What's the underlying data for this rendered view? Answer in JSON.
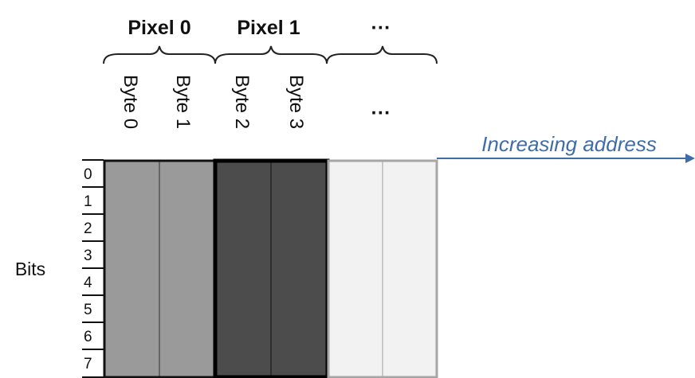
{
  "pixels": [
    {
      "label": "Pixel 0",
      "bytes": [
        "Byte 0",
        "Byte 1"
      ],
      "color": "#9a9a9a"
    },
    {
      "label": "Pixel 1",
      "bytes": [
        "Byte 2",
        "Byte 3"
      ],
      "color": "#4c4c4c"
    },
    {
      "label": "… …",
      "bytes": [
        "···"
      ],
      "color": "#f2f2f2"
    }
  ],
  "pixel_ellipsis": "···",
  "byte_ellipsis": "···",
  "bits_label": "Bits",
  "bit_numbers": [
    "0",
    "1",
    "2",
    "3",
    "4",
    "5",
    "6",
    "7"
  ],
  "address_label": "Increasing address",
  "colors": {
    "arrow": "#3e6da8",
    "pixel0": "#9a9a9a",
    "pixel1": "#4c4c4c",
    "empty": "#f2f2f2"
  }
}
